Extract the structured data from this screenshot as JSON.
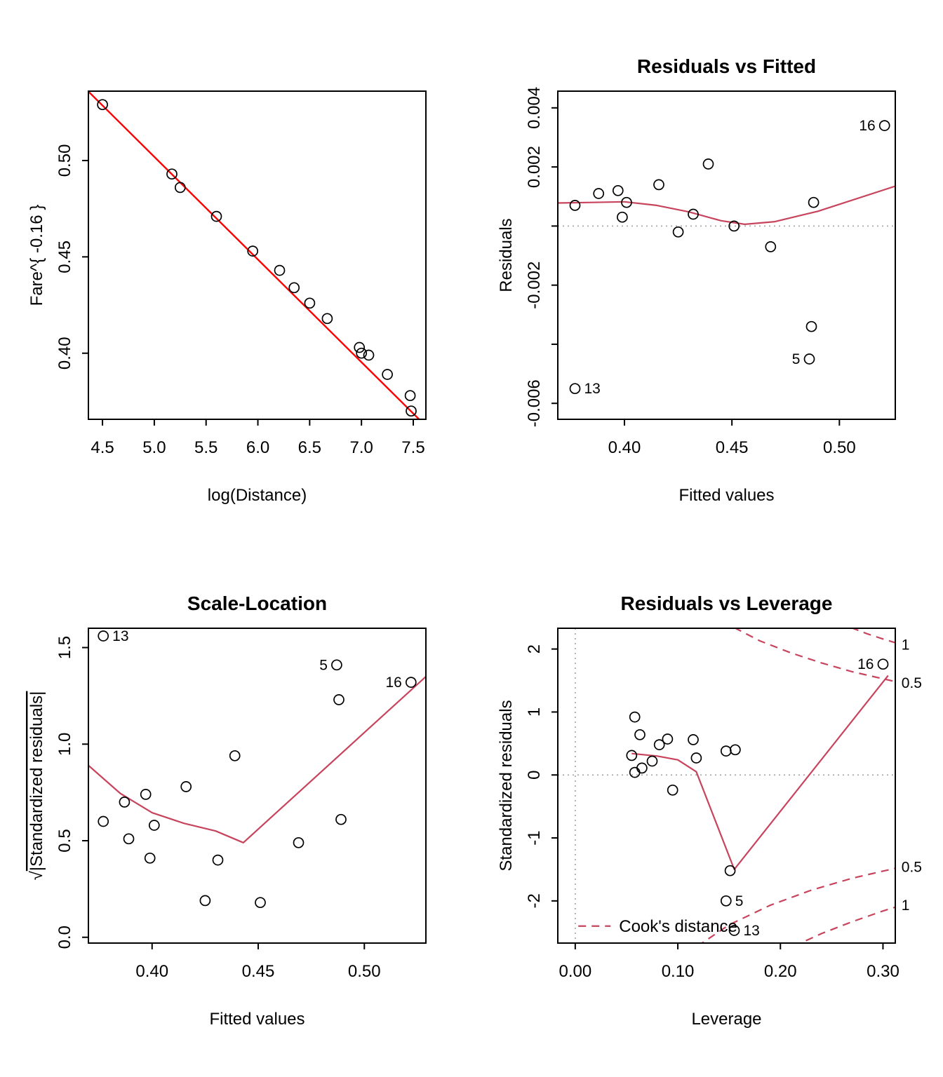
{
  "figure": {
    "background": "#FFFFFF",
    "point_color": "#000000",
    "box_color": "#000000",
    "fit_line_red": "#FF0000",
    "smoother_red": "#C8435C",
    "reference_gray": "#A9A9A9"
  },
  "chart_data": [
    {
      "id": "fare-vs-logdistance",
      "type": "scatter",
      "title": "",
      "xlabel": "log(Distance)",
      "ylabel": "Fare^{ -0.16 }",
      "xlim": [
        4.364,
        7.622
      ],
      "ylim": [
        0.3657,
        0.536
      ],
      "grid": false,
      "xticks": {
        "values": [
          4.5,
          5.0,
          5.5,
          6.0,
          6.5,
          7.0,
          7.5
        ],
        "labels": [
          "4.5",
          "5.0",
          "5.5",
          "6.0",
          "6.5",
          "7.0",
          "7.5"
        ]
      },
      "yticks": {
        "values": [
          0.4,
          0.45,
          0.5
        ],
        "labels": [
          "0.40",
          "0.45",
          "0.50"
        ]
      },
      "points": [
        [
          4.5,
          0.529
        ],
        [
          5.17,
          0.493
        ],
        [
          5.25,
          0.486
        ],
        [
          5.6,
          0.471
        ],
        [
          5.95,
          0.453
        ],
        [
          6.21,
          0.443
        ],
        [
          6.35,
          0.434
        ],
        [
          6.5,
          0.426
        ],
        [
          6.67,
          0.418
        ],
        [
          6.98,
          0.403
        ],
        [
          7.0,
          0.4
        ],
        [
          7.07,
          0.399
        ],
        [
          7.25,
          0.389
        ],
        [
          7.47,
          0.378
        ],
        [
          7.48,
          0.37
        ]
      ],
      "lines": [
        {
          "name": "ols-fit-line",
          "color": "#FF0000",
          "dash": "solid",
          "width": 2.4,
          "points": [
            [
              4.364,
              0.5358
            ],
            [
              7.622,
              0.3622
            ]
          ]
        }
      ]
    },
    {
      "id": "residuals-vs-fitted",
      "type": "scatter",
      "title": "Residuals vs Fitted",
      "xlabel": "Fitted values",
      "ylabel": "Residuals",
      "xlim": [
        0.369,
        0.526
      ],
      "ylim": [
        -0.00654,
        0.004565
      ],
      "grid": false,
      "xticks": {
        "values": [
          0.4,
          0.45,
          0.5
        ],
        "labels": [
          "0.40",
          "0.45",
          "0.50"
        ]
      },
      "yticks": {
        "values": [
          -0.006,
          -0.004,
          -0.002,
          0,
          0.002,
          0.004
        ],
        "labels": [
          "-0.006",
          "",
          "-0.002",
          "",
          "0.002",
          "0.004"
        ]
      },
      "ref_lines": [
        {
          "name": "zero-residual-line",
          "axis": "h",
          "at": 0
        }
      ],
      "points": [
        [
          0.377,
          0.0007
        ],
        [
          0.377,
          -0.0055
        ],
        [
          0.388,
          0.0011
        ],
        [
          0.397,
          0.0012
        ],
        [
          0.399,
          0.0003
        ],
        [
          0.401,
          0.0008
        ],
        [
          0.416,
          0.0014
        ],
        [
          0.425,
          -0.0002
        ],
        [
          0.432,
          0.0004
        ],
        [
          0.439,
          0.0021
        ],
        [
          0.451,
          0.0
        ],
        [
          0.468,
          -0.0007
        ],
        [
          0.486,
          -0.0045
        ],
        [
          0.487,
          -0.0034
        ],
        [
          0.488,
          0.0008
        ],
        [
          0.521,
          0.0034
        ]
      ],
      "lines": [
        {
          "name": "loess-smoother",
          "color": "#C8435C",
          "dash": "solid",
          "width": 2.2,
          "points": [
            [
              0.369,
              0.00078
            ],
            [
              0.385,
              0.0008
            ],
            [
              0.4,
              0.00082
            ],
            [
              0.415,
              0.0007
            ],
            [
              0.43,
              0.00048
            ],
            [
              0.445,
              0.00018
            ],
            [
              0.456,
              6e-05
            ],
            [
              0.47,
              0.00015
            ],
            [
              0.49,
              0.0005
            ],
            [
              0.526,
              0.00135
            ]
          ]
        }
      ],
      "point_labels": [
        {
          "text": "13",
          "x": 0.377,
          "y": -0.0055,
          "side": "right"
        },
        {
          "text": "5",
          "x": 0.486,
          "y": -0.0045,
          "side": "left"
        },
        {
          "text": "16",
          "x": 0.521,
          "y": 0.0034,
          "side": "left"
        }
      ]
    },
    {
      "id": "scale-location",
      "type": "scatter",
      "title": "Scale-Location",
      "xlabel": "Fitted values",
      "ylabel": "√|Standardized residuals|",
      "xlim": [
        0.37,
        0.529
      ],
      "ylim": [
        -0.03,
        1.6
      ],
      "grid": false,
      "xticks": {
        "values": [
          0.4,
          0.45,
          0.5
        ],
        "labels": [
          "0.40",
          "0.45",
          "0.50"
        ]
      },
      "yticks": {
        "values": [
          0.0,
          0.5,
          1.0,
          1.5
        ],
        "labels": [
          "0.0",
          "0.5",
          "1.0",
          "1.5"
        ]
      },
      "points": [
        [
          0.377,
          1.56
        ],
        [
          0.377,
          0.6
        ],
        [
          0.387,
          0.7
        ],
        [
          0.389,
          0.51
        ],
        [
          0.397,
          0.74
        ],
        [
          0.399,
          0.41
        ],
        [
          0.401,
          0.58
        ],
        [
          0.416,
          0.78
        ],
        [
          0.425,
          0.19
        ],
        [
          0.431,
          0.4
        ],
        [
          0.439,
          0.94
        ],
        [
          0.451,
          0.18
        ],
        [
          0.469,
          0.49
        ],
        [
          0.487,
          1.41
        ],
        [
          0.488,
          1.23
        ],
        [
          0.489,
          0.61
        ],
        [
          0.522,
          1.32
        ]
      ],
      "lines": [
        {
          "name": "scale-smoother",
          "color": "#C8435C",
          "dash": "solid",
          "width": 2.2,
          "points": [
            [
              0.37,
              0.89
            ],
            [
              0.385,
              0.745
            ],
            [
              0.4,
              0.645
            ],
            [
              0.415,
              0.59
            ],
            [
              0.43,
              0.55
            ],
            [
              0.443,
              0.49
            ],
            [
              0.47,
              0.76
            ],
            [
              0.5,
              1.06
            ],
            [
              0.529,
              1.35
            ]
          ]
        }
      ],
      "point_labels": [
        {
          "text": "13",
          "x": 0.377,
          "y": 1.56,
          "side": "right"
        },
        {
          "text": "5",
          "x": 0.487,
          "y": 1.41,
          "side": "left"
        },
        {
          "text": "16",
          "x": 0.522,
          "y": 1.32,
          "side": "left"
        }
      ]
    },
    {
      "id": "residuals-vs-leverage",
      "type": "scatter",
      "title": "Residuals vs Leverage",
      "xlabel": "Leverage",
      "ylabel": "Standardized residuals",
      "xlim": [
        -0.017,
        0.312
      ],
      "ylim": [
        -2.67,
        2.33
      ],
      "grid": false,
      "xticks": {
        "values": [
          0.0,
          0.1,
          0.2,
          0.3
        ],
        "labels": [
          "0.00",
          "0.10",
          "0.20",
          "0.30"
        ]
      },
      "yticks": {
        "values": [
          -2,
          -1,
          0,
          1,
          2
        ],
        "labels": [
          "-2",
          "-1",
          "0",
          "1",
          "2"
        ]
      },
      "ref_lines": [
        {
          "name": "zero-residual-line",
          "axis": "h",
          "at": 0
        },
        {
          "name": "zero-leverage-line",
          "axis": "v",
          "at": 0
        }
      ],
      "points": [
        [
          0.058,
          0.92
        ],
        [
          0.063,
          0.64
        ],
        [
          0.055,
          0.31
        ],
        [
          0.058,
          0.04
        ],
        [
          0.065,
          0.11
        ],
        [
          0.075,
          0.22
        ],
        [
          0.082,
          0.48
        ],
        [
          0.09,
          0.57
        ],
        [
          0.095,
          -0.24
        ],
        [
          0.115,
          0.56
        ],
        [
          0.118,
          0.27
        ],
        [
          0.147,
          0.38
        ],
        [
          0.156,
          0.4
        ],
        [
          0.151,
          -1.52
        ],
        [
          0.147,
          -2.0
        ],
        [
          0.155,
          -2.47
        ],
        [
          0.3,
          1.76
        ]
      ],
      "lines": [
        {
          "name": "leverage-smoother",
          "color": "#C8435C",
          "dash": "solid",
          "width": 2.2,
          "points": [
            [
              0.055,
              0.34
            ],
            [
              0.08,
              0.3
            ],
            [
              0.1,
              0.24
            ],
            [
              0.118,
              0.05
            ],
            [
              0.155,
              -1.5
            ],
            [
              0.305,
              1.58
            ]
          ]
        },
        {
          "name": "cooks-contour-05-upper",
          "color": "#C8435C",
          "dash": "dashed",
          "width": 2.2,
          "points": [
            [
              0.155,
              2.34
            ],
            [
              0.18,
              2.13
            ],
            [
              0.21,
              1.94
            ],
            [
              0.24,
              1.78
            ],
            [
              0.27,
              1.64
            ],
            [
              0.318,
              1.46
            ]
          ]
        },
        {
          "name": "cooks-contour-1-upper",
          "color": "#C8435C",
          "dash": "dashed",
          "width": 2.2,
          "points": [
            [
              0.269,
              2.34
            ],
            [
              0.285,
              2.24
            ],
            [
              0.3,
              2.16
            ],
            [
              0.318,
              2.07
            ]
          ]
        },
        {
          "name": "cooks-contour-05-lower",
          "color": "#C8435C",
          "dash": "dashed",
          "width": 2.2,
          "points": [
            [
              0.119,
              -2.72
            ],
            [
              0.15,
              -2.38
            ],
            [
              0.19,
              -2.07
            ],
            [
              0.23,
              -1.83
            ],
            [
              0.27,
              -1.64
            ],
            [
              0.318,
              -1.46
            ]
          ]
        },
        {
          "name": "cooks-contour-1-lower",
          "color": "#C8435C",
          "dash": "dashed",
          "width": 2.2,
          "points": [
            [
              0.213,
              -2.72
            ],
            [
              0.24,
              -2.52
            ],
            [
              0.27,
              -2.33
            ],
            [
              0.3,
              -2.16
            ],
            [
              0.318,
              -2.07
            ]
          ]
        }
      ],
      "point_labels": [
        {
          "text": "16",
          "x": 0.3,
          "y": 1.76,
          "side": "left"
        },
        {
          "text": "5",
          "x": 0.147,
          "y": -2.0,
          "side": "right"
        },
        {
          "text": "13",
          "x": 0.155,
          "y": -2.47,
          "side": "right"
        }
      ],
      "annotations": [
        {
          "text": "1",
          "x": 0.318,
          "y": 2.07,
          "color": "#C8435C"
        },
        {
          "text": "0.5",
          "x": 0.318,
          "y": 1.46,
          "color": "#C8435C"
        },
        {
          "text": "0.5",
          "x": 0.318,
          "y": -1.46,
          "color": "#C8435C"
        },
        {
          "text": "1",
          "x": 0.318,
          "y": -2.07,
          "color": "#C8435C"
        }
      ],
      "legend": {
        "label": "Cook's distance",
        "x": 0.003,
        "y": -2.4
      }
    }
  ]
}
